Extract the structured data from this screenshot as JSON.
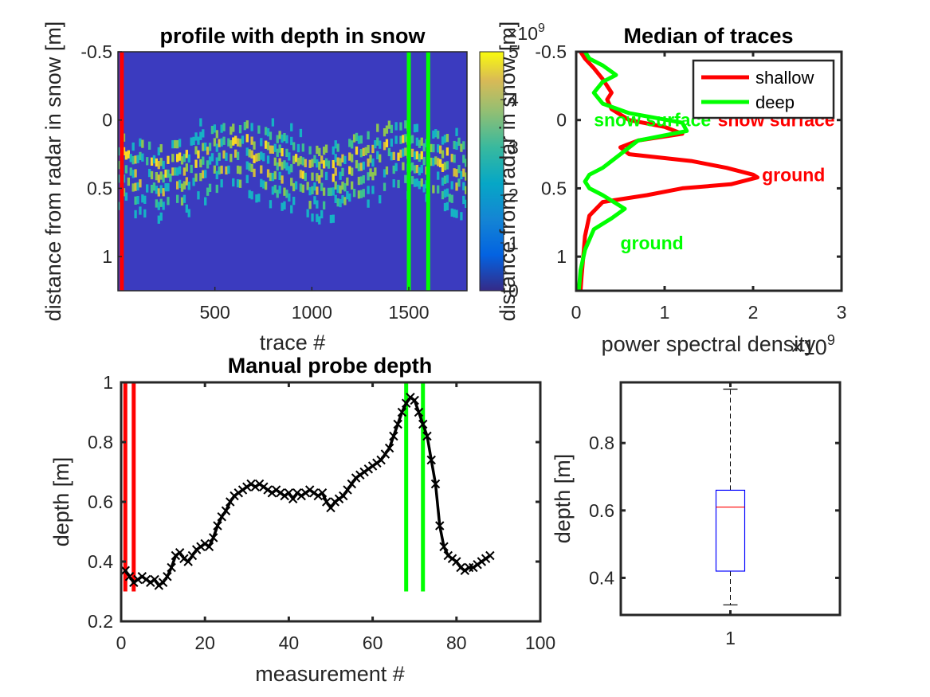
{
  "chart_data": [
    {
      "id": "profile",
      "type": "heatmap",
      "title": "profile with depth in snow",
      "xlabel": "trace #",
      "ylabel": "distance from radar in snow [m]",
      "xlim": [
        0,
        1800
      ],
      "ylim": [
        -0.5,
        1.25
      ],
      "y_reversed": true,
      "xticks": [
        500,
        1000,
        1500
      ],
      "yticks": [
        -0.5,
        0,
        0.5,
        1
      ],
      "ytick_labels": [
        "-0.5",
        "0",
        "0.5",
        "1"
      ],
      "colorbar": {
        "ticks": [
          0,
          1,
          2,
          3,
          4,
          5
        ],
        "exponent_label": "×10",
        "exponent": "9",
        "range": [
          0,
          5
        ]
      },
      "band_rows": {
        "y": [
          0.0,
          0.1,
          0.2,
          0.3,
          0.4,
          0.5,
          0.6,
          0.7,
          0.85
        ],
        "intensity": [
          0.35,
          0.55,
          0.7,
          0.65,
          0.6,
          0.5,
          0.4,
          0.3,
          0.25
        ]
      },
      "vertical_lines": [
        {
          "name": "shallow",
          "x": 20,
          "color": "#ff0000"
        },
        {
          "name": "deep",
          "x": 1500,
          "color": "#00ff00"
        },
        {
          "name": "deep",
          "x": 1600,
          "color": "#00ff00"
        }
      ]
    },
    {
      "id": "median",
      "type": "line",
      "title": "Median of traces",
      "xlabel": "power spectral density",
      "x_exponent_label": "×10",
      "x_exponent": "9",
      "ylabel": "distance from radar in snow [m]",
      "xlim": [
        0,
        3
      ],
      "ylim": [
        -0.5,
        1.25
      ],
      "y_reversed": true,
      "xticks": [
        0,
        1,
        2,
        3
      ],
      "yticks": [
        -0.5,
        0,
        0.5,
        1
      ],
      "ytick_labels": [
        "-0.5",
        "0",
        "0.5",
        "1"
      ],
      "legend_position": "top-right",
      "series": [
        {
          "name": "shallow",
          "color": "#ff0000",
          "points": [
            [
              0.05,
              -0.5
            ],
            [
              0.1,
              -0.45
            ],
            [
              0.2,
              -0.38
            ],
            [
              0.3,
              -0.3
            ],
            [
              0.4,
              -0.2
            ],
            [
              0.35,
              -0.15
            ],
            [
              0.4,
              -0.08
            ],
            [
              0.6,
              0.0
            ],
            [
              1.0,
              0.05
            ],
            [
              1.2,
              0.1
            ],
            [
              0.7,
              0.15
            ],
            [
              0.5,
              0.2
            ],
            [
              0.6,
              0.25
            ],
            [
              1.3,
              0.3
            ],
            [
              1.7,
              0.35
            ],
            [
              2.0,
              0.4
            ],
            [
              2.05,
              0.42
            ],
            [
              1.75,
              0.47
            ],
            [
              1.2,
              0.5
            ],
            [
              0.8,
              0.55
            ],
            [
              0.3,
              0.6
            ],
            [
              0.15,
              0.7
            ],
            [
              0.1,
              0.85
            ],
            [
              0.08,
              1.0
            ],
            [
              0.06,
              1.15
            ],
            [
              0.05,
              1.25
            ]
          ]
        },
        {
          "name": "deep",
          "color": "#00ff00",
          "points": [
            [
              0.1,
              -0.5
            ],
            [
              0.15,
              -0.45
            ],
            [
              0.3,
              -0.4
            ],
            [
              0.45,
              -0.33
            ],
            [
              0.3,
              -0.28
            ],
            [
              0.2,
              -0.2
            ],
            [
              0.3,
              -0.12
            ],
            [
              0.6,
              -0.05
            ],
            [
              1.2,
              0.02
            ],
            [
              1.25,
              0.08
            ],
            [
              0.7,
              0.15
            ],
            [
              0.5,
              0.25
            ],
            [
              0.3,
              0.35
            ],
            [
              0.15,
              0.4
            ],
            [
              0.1,
              0.45
            ],
            [
              0.15,
              0.5
            ],
            [
              0.3,
              0.55
            ],
            [
              0.55,
              0.65
            ],
            [
              0.4,
              0.72
            ],
            [
              0.2,
              0.8
            ],
            [
              0.1,
              0.95
            ],
            [
              0.05,
              1.1
            ],
            [
              0.03,
              1.25
            ]
          ]
        }
      ],
      "annotations": [
        {
          "text": "snow surface",
          "x": 0.2,
          "y": 0.0,
          "color": "#00ff00"
        },
        {
          "text": "snow surface",
          "x": 1.6,
          "y": 0.0,
          "color": "#ff0000"
        },
        {
          "text": "ground",
          "x": 2.1,
          "y": 0.4,
          "color": "#ff0000"
        },
        {
          "text": "ground",
          "x": 0.5,
          "y": 0.9,
          "color": "#00ff00"
        }
      ]
    },
    {
      "id": "probe",
      "type": "line",
      "title": "Manual probe depth",
      "xlabel": "measurement #",
      "ylabel": "depth [m]",
      "xlim": [
        0,
        100
      ],
      "ylim": [
        0.2,
        1.0
      ],
      "xticks": [
        0,
        20,
        40,
        60,
        80,
        100
      ],
      "yticks": [
        0.2,
        0.4,
        0.6,
        0.8,
        1.0
      ],
      "ytick_labels": [
        "0.2",
        "0.4",
        "0.6",
        "0.8",
        "1"
      ],
      "series": [
        {
          "name": "",
          "color": "#000000",
          "marker": "x",
          "x": [
            1,
            2,
            3,
            4,
            5,
            6,
            7,
            8,
            9,
            10,
            11,
            12,
            13,
            14,
            15,
            16,
            17,
            18,
            19,
            20,
            21,
            22,
            23,
            24,
            25,
            26,
            27,
            28,
            29,
            30,
            31,
            32,
            33,
            34,
            35,
            36,
            37,
            38,
            39,
            40,
            41,
            42,
            43,
            44,
            45,
            46,
            47,
            48,
            49,
            50,
            51,
            52,
            53,
            54,
            55,
            56,
            57,
            58,
            59,
            60,
            61,
            62,
            63,
            64,
            65,
            66,
            67,
            68,
            69,
            70,
            71,
            72,
            73,
            74,
            75,
            76,
            77,
            78,
            79,
            80,
            81,
            82,
            83,
            84,
            85,
            86,
            87,
            88
          ],
          "y": [
            0.37,
            0.35,
            0.33,
            0.34,
            0.35,
            0.34,
            0.33,
            0.34,
            0.32,
            0.33,
            0.35,
            0.38,
            0.42,
            0.43,
            0.41,
            0.4,
            0.42,
            0.44,
            0.45,
            0.46,
            0.45,
            0.48,
            0.52,
            0.55,
            0.57,
            0.6,
            0.62,
            0.63,
            0.64,
            0.65,
            0.66,
            0.65,
            0.66,
            0.65,
            0.64,
            0.63,
            0.64,
            0.63,
            0.62,
            0.63,
            0.61,
            0.63,
            0.62,
            0.63,
            0.64,
            0.63,
            0.62,
            0.63,
            0.6,
            0.58,
            0.6,
            0.61,
            0.62,
            0.64,
            0.66,
            0.68,
            0.69,
            0.7,
            0.71,
            0.72,
            0.73,
            0.74,
            0.76,
            0.78,
            0.82,
            0.86,
            0.9,
            0.93,
            0.95,
            0.94,
            0.9,
            0.86,
            0.82,
            0.74,
            0.66,
            0.52,
            0.45,
            0.42,
            0.41,
            0.4,
            0.38,
            0.37,
            0.38,
            0.38,
            0.39,
            0.4,
            0.41,
            0.42
          ]
        }
      ],
      "vertical_lines": [
        {
          "name": "shallow",
          "x": 1,
          "y_range": [
            0.3,
            1.0
          ],
          "color": "#ff0000"
        },
        {
          "name": "shallow",
          "x": 3,
          "y_range": [
            0.3,
            1.0
          ],
          "color": "#ff0000"
        },
        {
          "name": "deep",
          "x": 68,
          "y_range": [
            0.3,
            1.0
          ],
          "color": "#00ff00"
        },
        {
          "name": "deep",
          "x": 72,
          "y_range": [
            0.3,
            1.0
          ],
          "color": "#00ff00"
        }
      ]
    },
    {
      "id": "box",
      "type": "box",
      "ylabel": "depth [m]",
      "xlim": [
        0.5,
        1.5
      ],
      "ylim": [
        0.29,
        0.98
      ],
      "xticks": [
        1
      ],
      "yticks": [
        0.4,
        0.6,
        0.8
      ],
      "ytick_labels": [
        "0.4",
        "0.6",
        "0.8"
      ],
      "box": {
        "position": 1,
        "q1": 0.42,
        "median": 0.61,
        "q3": 0.66,
        "whisker_low": 0.32,
        "whisker_high": 0.96,
        "box_color": "#0000ff",
        "median_color": "#ff0000"
      }
    }
  ]
}
